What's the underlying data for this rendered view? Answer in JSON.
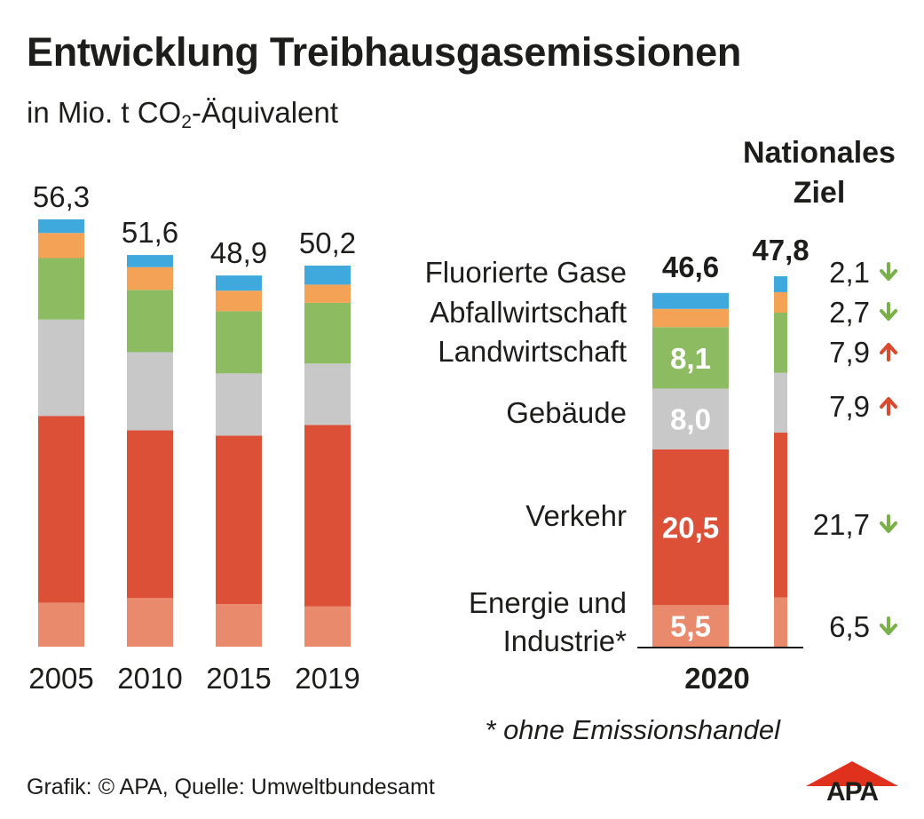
{
  "title": "Entwicklung Treibhausgasemissionen",
  "subtitle": {
    "prefix": "in Mio. t CO",
    "sub": "2",
    "suffix": "-Äquivalent"
  },
  "target_heading": [
    "Nationales",
    "Ziel"
  ],
  "footnote": "* ohne Emissionshandel",
  "credit": "Grafik: © APA, Quelle: Umweltbundesamt",
  "logo": "APA",
  "colors": {
    "Energie und Industrie*": "#e98a6d",
    "Verkehr": "#db5037",
    "Gebäude": "#c8c8c8",
    "Landwirtschaft": "#8cbb62",
    "Abfallwirtschaft": "#f4a256",
    "Fluorierte Gase": "#3fa9dd",
    "arrow_down": "#79b148",
    "arrow_up": "#d94a2e",
    "logo": "#e0301e"
  },
  "chart_data": {
    "type": "bar",
    "stacked": true,
    "unit": "Mio. t CO2-Äquivalent",
    "categories": [
      "2005",
      "2010",
      "2015",
      "2019",
      "2020"
    ],
    "totals": [
      "56,3",
      "51,6",
      "48,9",
      "50,2",
      "46,6"
    ],
    "series": [
      {
        "name": "Energie und Industrie*",
        "values": [
          5.8,
          6.4,
          5.6,
          5.3,
          5.5
        ]
      },
      {
        "name": "Verkehr",
        "values": [
          24.6,
          22.1,
          22.2,
          23.9,
          20.5
        ]
      },
      {
        "name": "Gebäude",
        "values": [
          12.7,
          10.3,
          8.2,
          8.1,
          8.0
        ]
      },
      {
        "name": "Landwirtschaft",
        "values": [
          8.1,
          8.2,
          8.2,
          8.0,
          8.1
        ]
      },
      {
        "name": "Abfallwirtschaft",
        "values": [
          3.3,
          3.0,
          2.7,
          2.4,
          2.4
        ]
      },
      {
        "name": "Fluorierte Gase",
        "values": [
          1.8,
          1.6,
          2.0,
          2.5,
          2.1
        ]
      }
    ],
    "labeled_values_2020": {
      "Energie und Industrie*": "5,5",
      "Verkehr": "20,5",
      "Gebäude": "8,0",
      "Landwirtschaft": "8,1"
    },
    "target": {
      "total": "47,8",
      "values": [
        6.5,
        21.7,
        7.9,
        7.9,
        2.7,
        2.1
      ],
      "labels": [
        "6,5",
        "21,7",
        "7,9",
        "7,9",
        "2,7",
        "2,1"
      ],
      "arrows": [
        "down",
        "down",
        "up",
        "up",
        "down",
        "down"
      ]
    },
    "legend_labels": [
      "Energie und\nIndustrie*",
      "Verkehr",
      "Gebäude",
      "Landwirtschaft",
      "Abfallwirtschaft",
      "Fluorierte Gase"
    ],
    "ylim": [
      0,
      60
    ]
  }
}
